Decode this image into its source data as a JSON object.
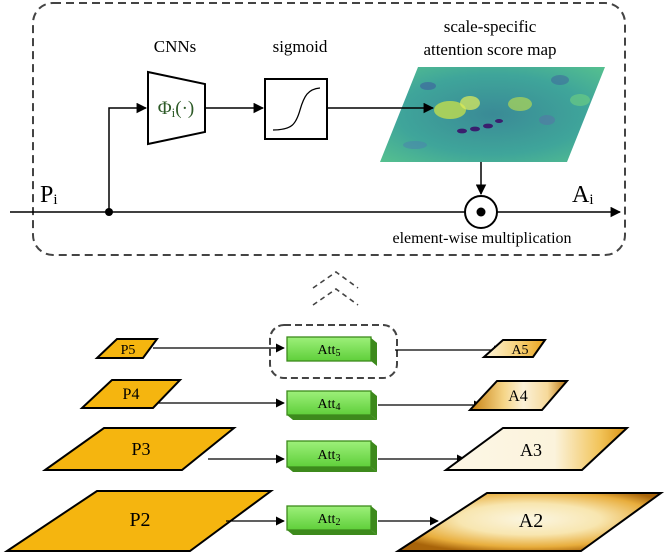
{
  "detail": {
    "cnn_caption": "CNNs",
    "cnn_block": "Φ",
    "cnn_block_sub": "i",
    "cnn_block_arg": "(·)",
    "sigmoid_caption": "sigmoid",
    "map_caption_line1": "scale-specific",
    "map_caption_line2": "attention score map",
    "input_label": "P",
    "input_sub": "i",
    "output_label": "A",
    "output_sub": "i",
    "operation_caption": "element-wise multiplication"
  },
  "pyramid": [
    {
      "input": "P5",
      "att": "Att",
      "att_sub": "5",
      "output": "A5"
    },
    {
      "input": "P4",
      "att": "Att",
      "att_sub": "4",
      "output": "A4"
    },
    {
      "input": "P3",
      "att": "Att",
      "att_sub": "3",
      "output": "A3"
    },
    {
      "input": "P2",
      "att": "Att",
      "att_sub": "2",
      "output": "A2"
    }
  ],
  "colors": {
    "feature_fill": "#f5b50f",
    "att_fill": "#7ee35a",
    "att_stroke": "#3d8a1c",
    "cnn_text": "#2d5a27",
    "output_dark": "#b5700b",
    "output_light": "#fdf5dc",
    "map_base": "#3f9aa0",
    "line": "#000000",
    "dash": "#444444"
  }
}
